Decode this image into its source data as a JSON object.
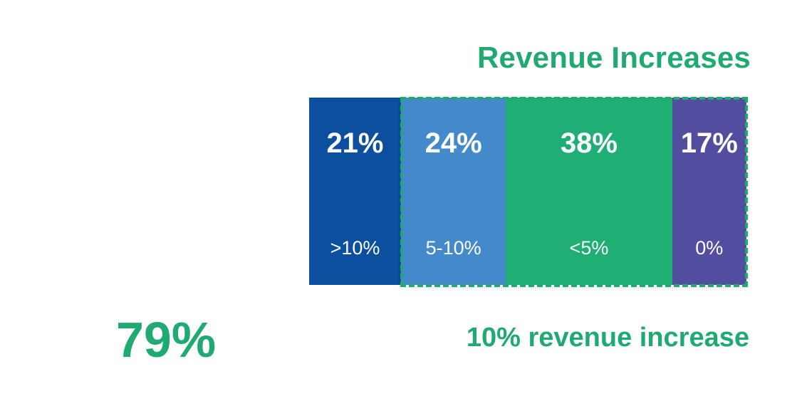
{
  "title": "Revenue Increases",
  "highlight_total": "79%",
  "highlight_caption": "10% revenue increase",
  "colors": {
    "accent": "#1FAA72",
    "segments": [
      "#0C4F9E",
      "#448ACB",
      "#1FAE74",
      "#524D9F"
    ]
  },
  "chart_data": {
    "type": "bar",
    "stacked": true,
    "orientation": "horizontal",
    "title": "Revenue Increases",
    "categories": [
      ">10%",
      "5-10%",
      "<5%",
      "0%"
    ],
    "values": [
      21,
      24,
      38,
      17
    ],
    "value_labels": [
      "21%",
      "24%",
      "38%",
      "17%"
    ],
    "highlighted_categories": [
      "5-10%",
      "<5%",
      "0%"
    ],
    "highlighted_total": "79%",
    "highlighted_caption": "10% revenue increase"
  }
}
